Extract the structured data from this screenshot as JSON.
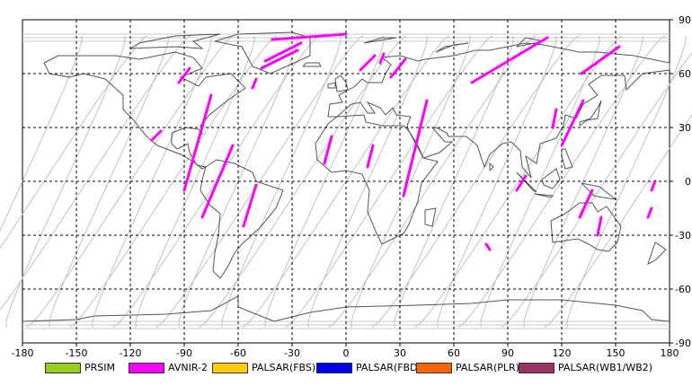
{
  "chart_data": {
    "type": "map",
    "projection": "equirectangular",
    "x_range": [
      -180,
      180
    ],
    "y_range": [
      -90,
      90
    ],
    "x_ticks": [
      "-180",
      "-150",
      "-120",
      "-90",
      "-60",
      "-30",
      "0",
      "30",
      "60",
      "90",
      "120",
      "150",
      "180"
    ],
    "y_ticks": [
      "90",
      "60",
      "30",
      "0",
      "-30",
      "-60",
      "-90"
    ],
    "grid": "dashed",
    "legend_position": "bottom",
    "legend": [
      {
        "label": "PRSIM",
        "color": "#99cc22"
      },
      {
        "label": "AVNIR-2",
        "color": "#ff00ff"
      },
      {
        "label": "PALSAR(FBS)",
        "color": "#ffcc00"
      },
      {
        "label": "PALSAR(FBD)",
        "color": "#0000ee"
      },
      {
        "label": "PALSAR(PLR)",
        "color": "#ff6600"
      },
      {
        "label": "PALSAR(WB1/WB2)",
        "color": "#993366"
      }
    ],
    "avnir2_segments": [
      [
        [
          -41,
          79
        ],
        [
          0,
          82
        ]
      ],
      [
        [
          -45,
          67
        ],
        [
          -25,
          77
        ]
      ],
      [
        [
          -47,
          63
        ],
        [
          -27,
          73
        ]
      ],
      [
        [
          -93,
          55
        ],
        [
          -87,
          63
        ]
      ],
      [
        [
          -108,
          23
        ],
        [
          -103,
          28
        ]
      ],
      [
        [
          -90,
          -5
        ],
        [
          -75,
          48
        ]
      ],
      [
        [
          -80,
          -20
        ],
        [
          -63,
          20
        ]
      ],
      [
        [
          -57,
          -25
        ],
        [
          -50,
          -2
        ]
      ],
      [
        [
          -52,
          52
        ],
        [
          -50,
          57
        ]
      ],
      [
        [
          -12,
          10
        ],
        [
          -8,
          25
        ]
      ],
      [
        [
          12,
          8
        ],
        [
          15,
          20
        ]
      ],
      [
        [
          8,
          62
        ],
        [
          16,
          70
        ]
      ],
      [
        [
          19,
          66
        ],
        [
          21,
          71
        ]
      ],
      [
        [
          25,
          58
        ],
        [
          33,
          68
        ]
      ],
      [
        [
          32,
          -8
        ],
        [
          45,
          45
        ]
      ],
      [
        [
          70,
          55
        ],
        [
          112,
          80
        ]
      ],
      [
        [
          78,
          -35
        ],
        [
          80,
          -38
        ]
      ],
      [
        [
          95,
          -5
        ],
        [
          100,
          3
        ]
      ],
      [
        [
          115,
          30
        ],
        [
          117,
          40
        ]
      ],
      [
        [
          120,
          20
        ],
        [
          132,
          45
        ]
      ],
      [
        [
          130,
          -20
        ],
        [
          137,
          -5
        ]
      ],
      [
        [
          131,
          60
        ],
        [
          152,
          75
        ]
      ],
      [
        [
          140,
          -30
        ],
        [
          142,
          -20
        ]
      ],
      [
        [
          168,
          -20
        ],
        [
          170,
          -15
        ]
      ],
      [
        [
          170,
          -5
        ],
        [
          172,
          0
        ]
      ]
    ]
  }
}
